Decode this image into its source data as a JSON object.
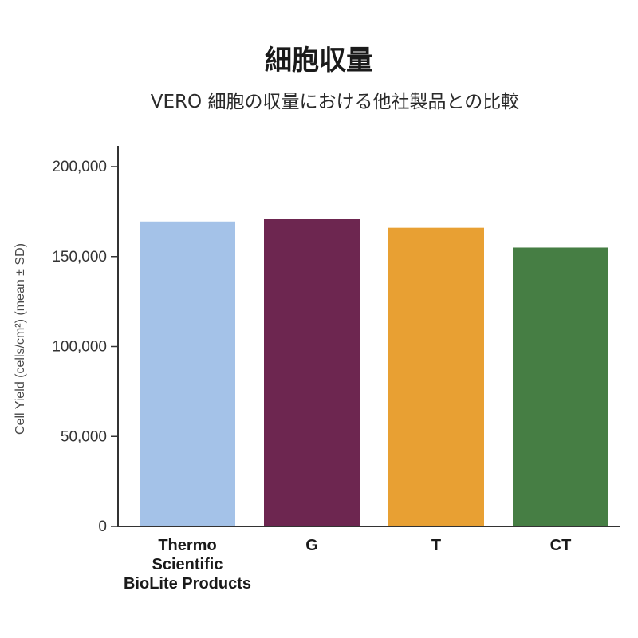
{
  "chart_data": {
    "type": "bar",
    "title": "細胞収量",
    "subtitle": "VERO 細胞の収量における他社製品との比較",
    "ylabel": "Cell Yield (cells/cm²) (mean ± SD)",
    "xlabel": "",
    "ylim": [
      0,
      200000
    ],
    "yticks": [
      0,
      50000,
      100000,
      150000,
      200000
    ],
    "ytick_labels": [
      "0",
      "50,000",
      "100,000",
      "150,000",
      "200,000"
    ],
    "categories": [
      [
        "Thermo",
        "Scientific",
        "BioLite Products"
      ],
      [
        "G"
      ],
      [
        "T"
      ],
      [
        "CT"
      ]
    ],
    "values": [
      169500,
      171000,
      166000,
      155000
    ],
    "colors": [
      "#a4c2e8",
      "#6d2650",
      "#e8a033",
      "#467e44"
    ],
    "grid": false,
    "legend": "none"
  }
}
